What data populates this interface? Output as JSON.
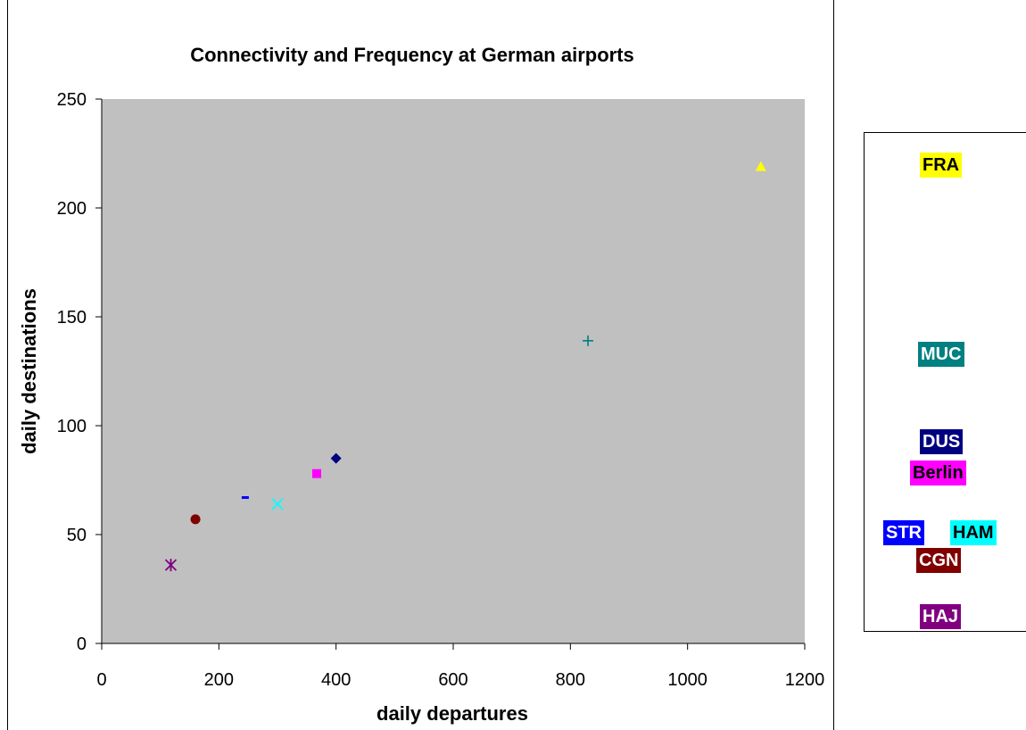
{
  "chart_data": {
    "type": "scatter",
    "title": "Connectivity and Frequency at German airports",
    "xlabel": "daily departures",
    "ylabel": "daily destinations",
    "xlim": [
      0,
      1200
    ],
    "ylim": [
      0,
      250
    ],
    "xticks": [
      "0",
      "200",
      "400",
      "600",
      "800",
      "1000",
      "1200"
    ],
    "yticks": [
      "0",
      "50",
      "100",
      "150",
      "200",
      "250"
    ],
    "plot_background": "#c0c0c0",
    "grid": false,
    "legend_position": "right",
    "series": [
      {
        "name": "FRA",
        "x": 1125,
        "y": 219,
        "marker": "triangle",
        "color": "#ffff00",
        "text_color": "#000000"
      },
      {
        "name": "MUC",
        "x": 830,
        "y": 139,
        "marker": "plus",
        "color": "#008080",
        "text_color": "#ffffff"
      },
      {
        "name": "DUS",
        "x": 400,
        "y": 85,
        "marker": "diamond",
        "color": "#000080",
        "text_color": "#ffffff"
      },
      {
        "name": "Berlin",
        "x": 367,
        "y": 78,
        "marker": "square",
        "color": "#ff00ff",
        "text_color": "#000000"
      },
      {
        "name": "STR",
        "x": 245,
        "y": 67,
        "marker": "dash",
        "color": "#0000ff",
        "text_color": "#ffffff"
      },
      {
        "name": "HAM",
        "x": 300,
        "y": 64,
        "marker": "x",
        "color": "#00ffff",
        "text_color": "#000000"
      },
      {
        "name": "CGN",
        "x": 160,
        "y": 57,
        "marker": "circle",
        "color": "#800000",
        "text_color": "#ffffff"
      },
      {
        "name": "HAJ",
        "x": 118,
        "y": 36,
        "marker": "star",
        "color": "#800080",
        "text_color": "#ffffff"
      }
    ]
  }
}
